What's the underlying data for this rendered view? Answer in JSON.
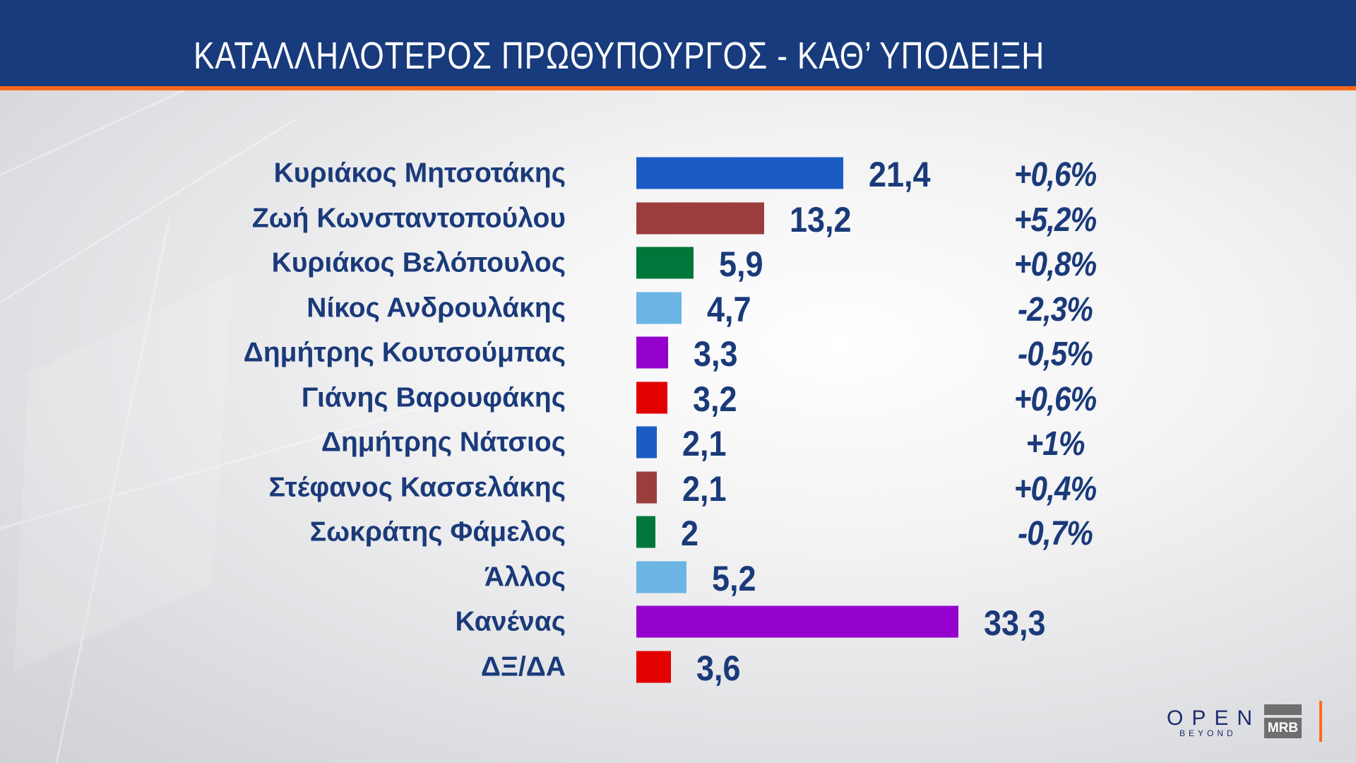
{
  "header": {
    "title": "ΚΑΤΑΛΛΗΛΟΤΕΡΟΣ  ΠΡΩΘΥΠΟΥΡΓΟΣ - ΚΑΘ’ ΥΠΟΔΕΙΞΗ"
  },
  "colors": {
    "header": "#173b7c",
    "accent": "#ff6a1a",
    "text": "#1a3a7a"
  },
  "chart_data": {
    "type": "bar",
    "orientation": "horizontal",
    "title": "ΚΑΤΑΛΛΗΛΟΤΕΡΟΣ  ΠΡΩΘΥΠΟΥΡΓΟΣ - ΚΑΘ’ ΥΠΟΔΕΙΞΗ",
    "categories": [
      "Κυριάκος Μητσοτάκης",
      "Ζωή Κωνσταντοπούλου",
      "Κυριάκος Βελόπουλος",
      "Νίκος Ανδρουλάκης",
      "Δημήτρης Κουτσούμπας",
      "Γιάνης Βαρουφάκης",
      "Δημήτρης Νάτσιος",
      "Στέφανος Κασσελάκης",
      "Σωκράτης Φάμελος",
      "Άλλος",
      "Κανένας",
      "ΔΞ/ΔΑ"
    ],
    "values": [
      21.4,
      13.2,
      5.9,
      4.7,
      3.3,
      3.2,
      2.1,
      2.1,
      2,
      5.2,
      33.3,
      3.6
    ],
    "value_labels": [
      "21,4",
      "13,2",
      "5,9",
      "4,7",
      "3,3",
      "3,2",
      "2,1",
      "2,1",
      "2",
      "5,2",
      "33,3",
      "3,6"
    ],
    "changes": [
      "+0,6%",
      "+5,2%",
      "+0,8%",
      "-2,3%",
      "-0,5%",
      "+0,6%",
      "+1%",
      "+0,4%",
      "-0,7%",
      "",
      "",
      ""
    ],
    "bar_colors": [
      "#1b5bc4",
      "#9c3d3d",
      "#00773a",
      "#6cb4e4",
      "#9400cc",
      "#e30000",
      "#1b5bc4",
      "#9c3d3d",
      "#00773a",
      "#6cb4e4",
      "#9400cc",
      "#e30000"
    ],
    "grid": false,
    "legend": "none"
  },
  "logos": {
    "open": "OPEN",
    "open_sub": "BEYOND",
    "mrb": "MRB"
  }
}
